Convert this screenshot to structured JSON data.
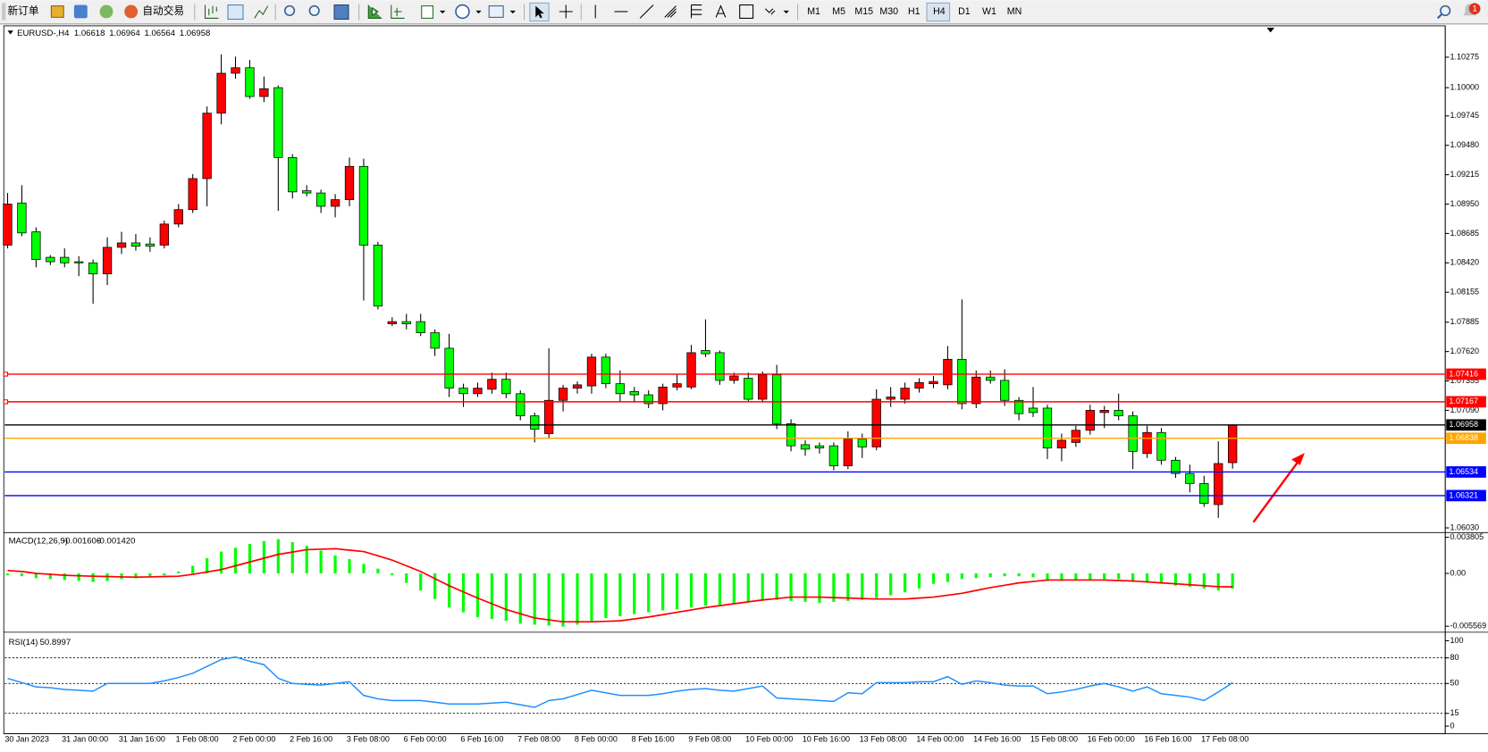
{
  "toolbar": {
    "new_order": "新订单",
    "auto_trading": "自动交易",
    "timeframes": [
      "M1",
      "M5",
      "M15",
      "M30",
      "H1",
      "H4",
      "D1",
      "W1",
      "MN"
    ],
    "notifications": 1
  },
  "chart_data": [
    {
      "type": "candlestick",
      "symbol": "EURUSD-,H4",
      "categories": [
        "30 Jan 2023",
        null,
        null,
        null,
        "31 Jan 00:00",
        null,
        null,
        null,
        "31 Jan 16:00",
        null,
        null,
        null,
        "1 Feb 08:00",
        null,
        null,
        null,
        "2 Feb 00:00",
        null,
        null,
        null,
        "2 Feb 16:00",
        null,
        null,
        null,
        "3 Feb 08:00",
        null,
        null,
        null,
        "6 Feb 00:00",
        null,
        null,
        null,
        "6 Feb 16:00",
        null,
        null,
        null,
        "7 Feb 08:00",
        null,
        null,
        null,
        "8 Feb 00:00",
        null,
        null,
        null,
        "8 Feb 16:00",
        null,
        null,
        null,
        "9 Feb 08:00",
        null,
        null,
        null,
        "10 Feb 00:00",
        null,
        null,
        null,
        "10 Feb 16:00",
        null,
        null,
        null,
        "13 Feb 08:00",
        null,
        null,
        null,
        "14 Feb 00:00",
        null,
        null,
        null,
        "14 Feb 16:00",
        null,
        null,
        null,
        "15 Feb 08:00",
        null,
        null,
        null,
        "16 Feb 00:00",
        null,
        null,
        null,
        "16 Feb 16:00",
        null,
        null,
        null,
        "17 Feb 08:00",
        null,
        null
      ],
      "open": [
        1.0858,
        1.0896,
        1.087,
        1.0847,
        1.0847,
        1.0843,
        1.0842,
        1.0832,
        1.0856,
        1.086,
        1.0859,
        1.0858,
        1.0877,
        1.089,
        1.0918,
        1.0977,
        1.1013,
        1.1018,
        1.0992,
        1.1,
        1.0937,
        1.0907,
        1.0905,
        1.0893,
        1.0899,
        1.0929,
        1.0858,
        1.0787,
        1.0789,
        1.0789,
        1.0779,
        1.0765,
        1.0729,
        1.0724,
        1.0728,
        1.0737,
        1.0724,
        1.0704,
        1.0688,
        1.0718,
        1.0729,
        1.0731,
        1.0757,
        1.0733,
        1.0726,
        1.0723,
        1.0715,
        1.073,
        1.073,
        1.0763,
        1.0761,
        1.0736,
        1.0738,
        1.0719,
        1.0741,
        1.0697,
        1.0678,
        1.0677,
        1.0677,
        1.0659,
        1.0683,
        1.0676,
        1.0719,
        1.0719,
        1.0729,
        1.0733,
        1.0732,
        1.0755,
        1.0715,
        1.0739,
        1.0736,
        1.0718,
        1.0711,
        1.0711,
        1.0675,
        1.068,
        1.0691,
        1.0707,
        1.0709,
        1.0704,
        1.067,
        1.0689,
        1.0664,
        1.0652,
        1.0643,
        1.0624,
        1.06618
      ],
      "high": [
        1.0905,
        1.0912,
        1.0874,
        1.0849,
        1.0855,
        1.0848,
        1.0845,
        1.0865,
        1.087,
        1.0868,
        1.0865,
        1.088,
        1.0895,
        1.0922,
        1.0983,
        1.103,
        1.1028,
        1.1025,
        1.101,
        1.1002,
        1.094,
        1.0912,
        1.0908,
        1.0904,
        1.0937,
        1.0936,
        1.0861,
        1.0793,
        1.0796,
        1.0796,
        1.0782,
        1.0778,
        1.0733,
        1.0734,
        1.0743,
        1.0743,
        1.0727,
        1.0707,
        1.0765,
        1.0732,
        1.0735,
        1.076,
        1.076,
        1.0745,
        1.073,
        1.0727,
        1.0733,
        1.0742,
        1.0768,
        1.0791,
        1.0763,
        1.0743,
        1.0743,
        1.0744,
        1.075,
        1.0701,
        1.0682,
        1.068,
        1.068,
        1.069,
        1.0688,
        1.0728,
        1.073,
        1.0734,
        1.0738,
        1.074,
        1.0767,
        1.0809,
        1.0745,
        1.0745,
        1.0746,
        1.0721,
        1.073,
        1.0714,
        1.0688,
        1.0695,
        1.0714,
        1.0713,
        1.0724,
        1.0708,
        1.0695,
        1.0693,
        1.0667,
        1.066,
        1.065,
        1.0681,
        1.06964
      ],
      "low": [
        1.0855,
        1.0866,
        1.0838,
        1.084,
        1.0838,
        1.083,
        1.0805,
        1.0822,
        1.085,
        1.0853,
        1.0852,
        1.0855,
        1.0874,
        1.0887,
        1.0893,
        1.0967,
        1.1008,
        1.099,
        1.0987,
        1.0889,
        1.09,
        1.0902,
        1.0887,
        1.0883,
        1.0893,
        1.0808,
        1.08,
        1.0785,
        1.0782,
        1.0776,
        1.0758,
        1.0721,
        1.0712,
        1.0721,
        1.0724,
        1.072,
        1.07,
        1.068,
        1.0684,
        1.0708,
        1.0724,
        1.0724,
        1.0729,
        1.0717,
        1.0716,
        1.0711,
        1.0709,
        1.0727,
        1.0728,
        1.0757,
        1.0732,
        1.0733,
        1.0717,
        1.0716,
        1.0692,
        1.0672,
        1.0668,
        1.067,
        1.0655,
        1.0656,
        1.0666,
        1.0673,
        1.0712,
        1.0715,
        1.0725,
        1.0729,
        1.0728,
        1.071,
        1.0711,
        1.0733,
        1.0713,
        1.07,
        1.0703,
        1.0665,
        1.0663,
        1.0676,
        1.0687,
        1.0693,
        1.07,
        1.0656,
        1.0666,
        1.066,
        1.0648,
        1.0635,
        1.0622,
        1.0612,
        1.06564
      ],
      "close": [
        1.0895,
        1.0869,
        1.0845,
        1.0843,
        1.0842,
        1.0842,
        1.0832,
        1.0856,
        1.086,
        1.0857,
        1.0857,
        1.0877,
        1.089,
        1.0918,
        1.0977,
        1.1013,
        1.1018,
        1.0992,
        1.0999,
        1.0937,
        1.0906,
        1.0905,
        1.0893,
        1.0899,
        1.0929,
        1.0858,
        1.0803,
        1.0789,
        1.0787,
        1.0779,
        1.0765,
        1.0729,
        1.0724,
        1.0729,
        1.0737,
        1.0724,
        1.0704,
        1.0692,
        1.0718,
        1.0729,
        1.0732,
        1.0757,
        1.0733,
        1.0724,
        1.0723,
        1.0715,
        1.073,
        1.0733,
        1.0761,
        1.076,
        1.0736,
        1.074,
        1.0719,
        1.0741,
        1.0697,
        1.0677,
        1.0674,
        1.0675,
        1.0659,
        1.0683,
        1.0676,
        1.0719,
        1.0721,
        1.0729,
        1.0734,
        1.0735,
        1.0755,
        1.0715,
        1.0739,
        1.0736,
        1.0718,
        1.0706,
        1.0707,
        1.0675,
        1.0682,
        1.0691,
        1.0709,
        1.0709,
        1.0704,
        1.0672,
        1.0689,
        1.0664,
        1.0652,
        1.0643,
        1.0625,
        1.0661,
        1.06958
      ],
      "up_color": "#ff0000",
      "down_color": "#00ff00",
      "ylim": [
        1.05996,
        1.10549
      ],
      "yticks": [
        1.10275,
        {
          "value": 1.1,
          "label": "1.10000"
        },
        1.09745,
        {
          "value": 1.0948,
          "label": "1.09480"
        },
        1.09215,
        {
          "value": 1.0895,
          "label": "1.08950"
        },
        1.08685,
        {
          "value": 1.0842,
          "label": "1.08420"
        },
        1.08155,
        1.07885,
        {
          "value": 1.0762,
          "label": "1.07620"
        },
        1.07355,
        {
          "value": 1.0709,
          "label": "1.07090"
        },
        {
          "value": 1.0603,
          "label": "1.06030"
        }
      ],
      "hlines": [
        {
          "value": 1.07416,
          "color": "#ff0000"
        },
        {
          "value": 1.07167,
          "color": "#ff0000"
        },
        {
          "value": 1.06958,
          "color": "#000000"
        },
        {
          "value": 1.06838,
          "color": "#ffa500"
        },
        {
          "value": 1.06534,
          "color": "#0000ff"
        },
        {
          "value": 1.06321,
          "color": "#0000ff"
        }
      ]
    },
    {
      "type": "macd",
      "title": "MACD(12,26,9)",
      "histogram": {
        "color": "#00ff00",
        "values": [
          -0.0002,
          -0.0003,
          -0.0005,
          -0.0006,
          -0.0007,
          -0.0008,
          -0.0009,
          -0.0008,
          -0.0006,
          -0.0005,
          -0.0004,
          -0.0002,
          0.0002,
          0.0008,
          0.0016,
          0.0023,
          0.0027,
          0.0031,
          0.0034,
          0.0036,
          0.0033,
          0.0029,
          0.0024,
          0.0019,
          0.0015,
          0.001,
          0.0005,
          -0.0002,
          -0.001,
          -0.0018,
          -0.0027,
          -0.0036,
          -0.0041,
          -0.0046,
          -0.0048,
          -0.005,
          -0.0053,
          -0.0054,
          -0.0055,
          -0.0056,
          -0.0054,
          -0.005,
          -0.0047,
          -0.0045,
          -0.0043,
          -0.0041,
          -0.0039,
          -0.0038,
          -0.0036,
          -0.0034,
          -0.0033,
          -0.0031,
          -0.003,
          -0.0029,
          -0.0028,
          -0.0029,
          -0.003,
          -0.0031,
          -0.003,
          -0.0029,
          -0.0028,
          -0.0026,
          -0.0023,
          -0.002,
          -0.0016,
          -0.0011,
          -0.0009,
          -0.0006,
          -0.0005,
          -0.0004,
          -0.0003,
          -0.0003,
          -0.0004,
          -0.0008,
          -0.0008,
          -0.0007,
          -0.0007,
          -0.0006,
          -0.0006,
          -0.0009,
          -0.001,
          -0.0011,
          -0.0013,
          -0.0014,
          -0.0016,
          -0.0018,
          -0.001606
        ]
      },
      "signal": {
        "color": "#ff0000",
        "values": [
          0.0003,
          0.0002,
          0,
          -0.0001,
          -0.0002,
          -0.00025,
          -0.0003,
          -0.00033,
          -0.00037,
          -0.0004,
          -0.00037,
          -0.00033,
          -0.0003,
          -0.0001,
          0.00015,
          0.0004,
          0.0008,
          0.0012,
          0.0016,
          0.002,
          0.00225,
          0.0025,
          0.00255,
          0.0026,
          0.00245,
          0.0023,
          0.00185,
          0.0014,
          0.0008,
          0.0002,
          -0.00055,
          -0.0013,
          -0.00195,
          -0.0026,
          -0.0032,
          -0.0038,
          -0.00425,
          -0.0047,
          -0.0049,
          -0.0051,
          -0.0051,
          -0.0051,
          -0.00505,
          -0.005,
          -0.0048,
          -0.0046,
          -0.00435,
          -0.0041,
          -0.00385,
          -0.0036,
          -0.0034,
          -0.0032,
          -0.003,
          -0.0028,
          -0.00265,
          -0.0025,
          -0.0025,
          -0.0025,
          -0.00255,
          -0.0026,
          -0.00265,
          -0.0027,
          -0.0027,
          -0.0027,
          -0.0026,
          -0.0025,
          -0.0023,
          -0.0021,
          -0.0018,
          -0.0015,
          -0.00125,
          -0.001,
          -0.00085,
          -0.0007,
          -0.0007,
          -0.0007,
          -0.0007,
          -0.0007,
          -0.00075,
          -0.0008,
          -0.0009,
          -0.001,
          -0.0011,
          -0.0012,
          -0.0013,
          -0.0014,
          -0.00142
        ],
        "value_labels": [
          null,
          null,
          null,
          null,
          null,
          null,
          null,
          null,
          null,
          null,
          null,
          null,
          null,
          null,
          null,
          null,
          null,
          null,
          null,
          null,
          null,
          null,
          null,
          null,
          null,
          null,
          null,
          null,
          null,
          null,
          null,
          null,
          null,
          null,
          null,
          null,
          null,
          null,
          null,
          null,
          null,
          null,
          null,
          null,
          null,
          null,
          null,
          null,
          null,
          null,
          null,
          null,
          null,
          null,
          null,
          null,
          null,
          null,
          null,
          null,
          null,
          null,
          null,
          null,
          null,
          null,
          null,
          null,
          null,
          null,
          null,
          null,
          null,
          null,
          null,
          null,
          null,
          null,
          null,
          null,
          null,
          null,
          null,
          null,
          null,
          null,
          "-0.001420"
        ]
      },
      "ylim": [
        -0.0061,
        0.0042
      ],
      "yticks": [
        0.003805,
        {
          "value": 0,
          "label": "0.00"
        },
        -0.005569
      ]
    },
    {
      "type": "rsi",
      "title": "RSI(14)",
      "color": "#1e90ff",
      "values": [
        56,
        51,
        46,
        45,
        43,
        42,
        41,
        50,
        50,
        50,
        50,
        53,
        57,
        62,
        70,
        78,
        81,
        76,
        72,
        56,
        50,
        49,
        48,
        50,
        52,
        36,
        32,
        30,
        30,
        30,
        28,
        26,
        26,
        26,
        27,
        28,
        25,
        22,
        30,
        32,
        37,
        42,
        39,
        36,
        36,
        36,
        38,
        41,
        43,
        44,
        42,
        41,
        44,
        47,
        33,
        32,
        31,
        30,
        29,
        39,
        38,
        51,
        51,
        51,
        52,
        52,
        58,
        49,
        53,
        51,
        48,
        47,
        47,
        38,
        40,
        43,
        47,
        50,
        46,
        41,
        46,
        38,
        36,
        34,
        30,
        40,
        50.8997
      ],
      "ylim": [
        -7.8,
        107.8
      ],
      "yticks": [
        100,
        80,
        50,
        15,
        0
      ],
      "levels": [
        80,
        50,
        15
      ]
    }
  ]
}
